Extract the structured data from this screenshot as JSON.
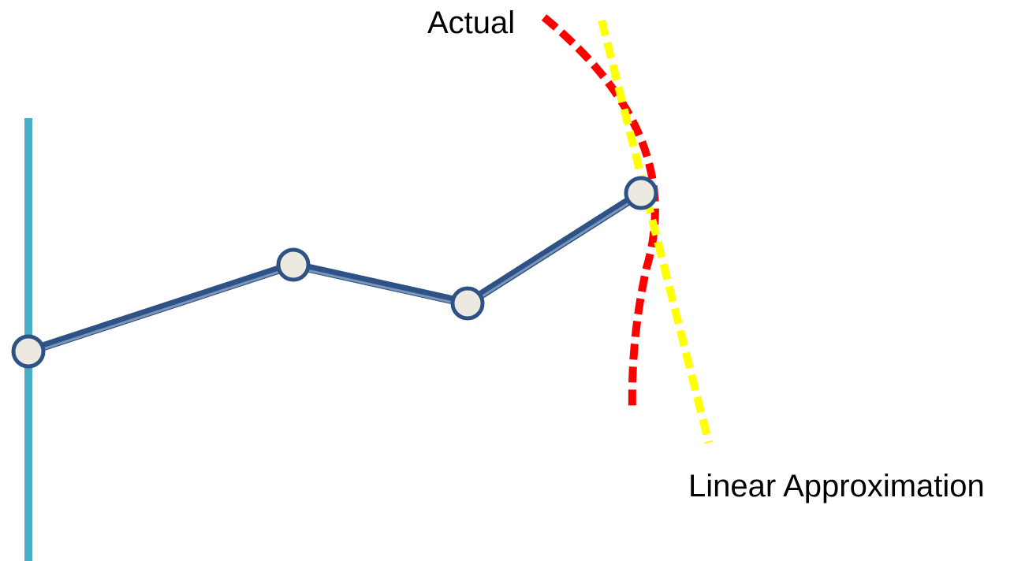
{
  "labels": {
    "actual": "Actual",
    "linear_approximation": "Linear Approximation"
  },
  "colors": {
    "background": "#ffffff",
    "base_line": "#4aaec8",
    "chain_link": "#2e5286",
    "chain_link_highlight": "#8fa6c4",
    "joint_fill": "#ece9e0",
    "joint_stroke": "#2e5286",
    "actual_curve": "#ff0000",
    "linear_approximation_line": "#ffff00",
    "text": "#000000"
  },
  "diagram": {
    "joint_count": 4,
    "link_count": 3
  }
}
